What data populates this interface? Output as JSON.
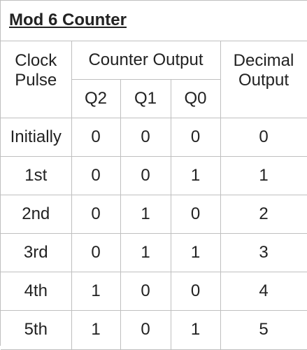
{
  "title": "Mod 6 Counter",
  "headers": {
    "clock_line1": "Clock",
    "clock_line2": "Pulse",
    "counter_output": "Counter Output",
    "decimal_line1": "Decimal",
    "decimal_line2": "Output",
    "q2": "Q2",
    "q1": "Q1",
    "q0": "Q0"
  },
  "rows": [
    {
      "pulse": "Initially",
      "q2": "0",
      "q1": "0",
      "q0": "0",
      "decimal": "0"
    },
    {
      "pulse": "1st",
      "q2": "0",
      "q1": "0",
      "q0": "1",
      "decimal": "1"
    },
    {
      "pulse": "2nd",
      "q2": "0",
      "q1": "1",
      "q0": "0",
      "decimal": "2"
    },
    {
      "pulse": "3rd",
      "q2": "0",
      "q1": "1",
      "q0": "1",
      "decimal": "3"
    },
    {
      "pulse": "4th",
      "q2": "1",
      "q1": "0",
      "q0": "0",
      "decimal": "4"
    },
    {
      "pulse": "5th",
      "q2": "1",
      "q1": "0",
      "q0": "1",
      "decimal": "5"
    }
  ]
}
